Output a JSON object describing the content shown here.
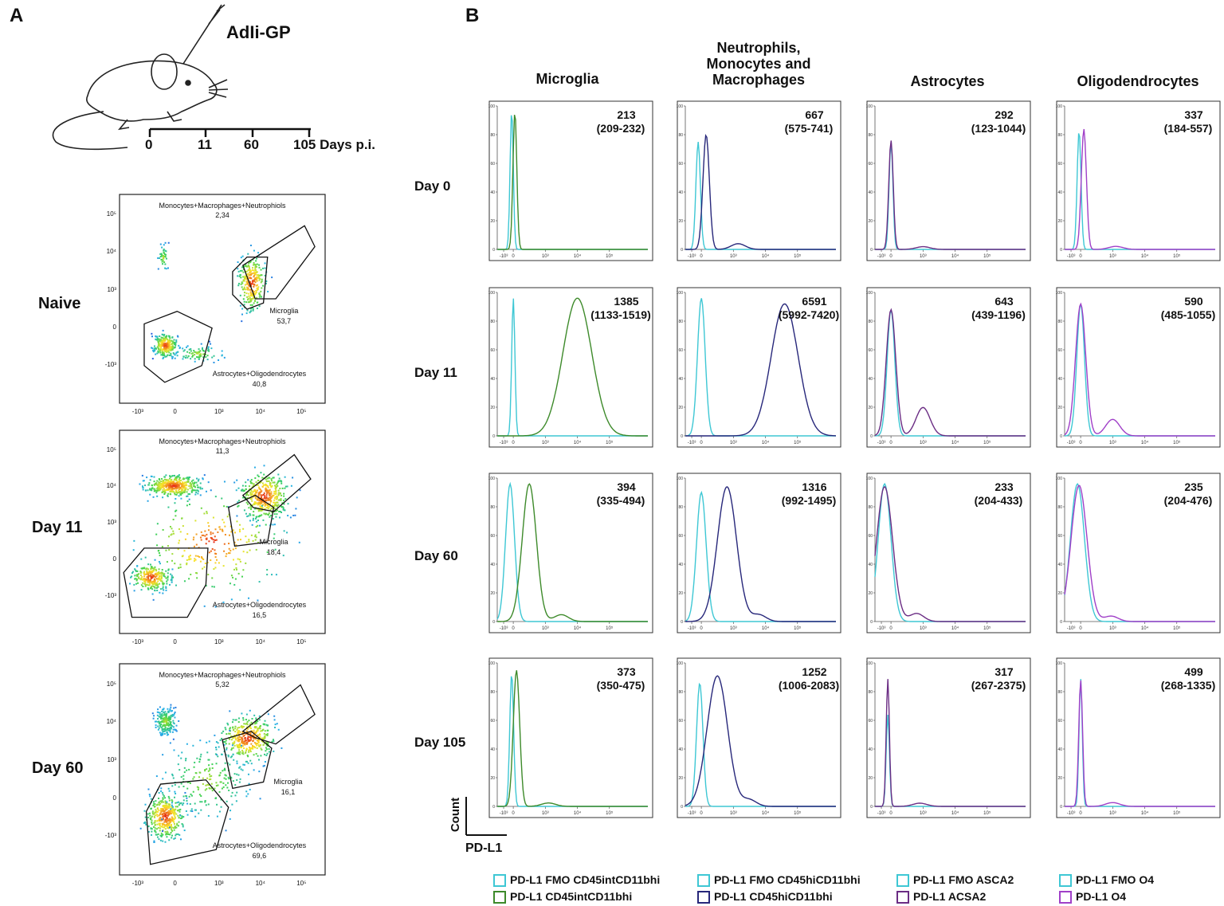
{
  "figure": {
    "panel_a_label": "A",
    "panel_b_label": "B",
    "injection_label": "AdIi-GP",
    "timeline": {
      "ticks": [
        "0",
        "11",
        "60",
        "105 Days p.i."
      ]
    }
  },
  "scatter_panels": [
    {
      "condition": "Naive",
      "gates": [
        {
          "name": "Monocytes+Macrophages+Neutrophiols",
          "value": "2,34"
        },
        {
          "name": "Microglia",
          "value": "53,7"
        },
        {
          "name": "Astrocytes+Oligodendrocytes",
          "value": "40,8"
        }
      ]
    },
    {
      "condition": "Day 11",
      "gates": [
        {
          "name": "Monocytes+Macrophages+Neutrophiols",
          "value": "11,3"
        },
        {
          "name": "Microglia",
          "value": "18,4"
        },
        {
          "name": "Astrocytes+Oligodendrocytes",
          "value": "16,5"
        }
      ]
    },
    {
      "condition": "Day 60",
      "gates": [
        {
          "name": "Monocytes+Macrophages+Neutrophiols",
          "value": "5,32"
        },
        {
          "name": "Microglia",
          "value": "16,1"
        },
        {
          "name": "Astrocytes+Oligodendrocytes",
          "value": "69,6"
        }
      ]
    }
  ],
  "scatter_axes": {
    "x_ticks": [
      "-10³",
      "0",
      "10³",
      "10⁴",
      "10⁵"
    ],
    "y_ticks": [
      "10⁵",
      "10⁴",
      "10³",
      "0",
      "-10³"
    ]
  },
  "histogram_grid": {
    "columns": [
      "Microglia",
      "Neutrophils, Monocytes and Macrophages",
      "Astrocytes",
      "Oligodendrocytes"
    ],
    "rows": [
      "Day 0",
      "Day 11",
      "Day 60",
      "Day 105"
    ],
    "y_ticks": [
      "100",
      "80",
      "60",
      "40",
      "20",
      "0"
    ],
    "x_ticks": [
      "-10³",
      "0",
      "10³",
      "10⁴",
      "10⁵"
    ],
    "axis_x_label": "PD-L1",
    "axis_y_label": "Count"
  },
  "chart_data": {
    "type": "histogram-grid",
    "title": "",
    "xlabel": "PD-L1",
    "ylabel": "Count",
    "ylim": [
      0,
      100
    ],
    "x_scale": "biexponential (-10^3 to 10^5)",
    "cells": [
      [
        {
          "mfi": "213",
          "range": "(209-232)",
          "fmo_peak": -0.05,
          "fmo_width": 0.05,
          "fmo_height": 97,
          "stain_peak": 0.05,
          "stain_width": 0.06,
          "stain_height": 96,
          "tail": 0
        },
        {
          "mfi": "667",
          "range": "(575-741)",
          "fmo_peak": -0.1,
          "fmo_width": 0.07,
          "fmo_height": 75,
          "stain_peak": 0.15,
          "stain_width": 0.1,
          "stain_height": 80,
          "tail": 0.1
        },
        {
          "mfi": "292",
          "range": "(123-1044)",
          "fmo_peak": 0.0,
          "fmo_width": 0.06,
          "fmo_height": 75,
          "stain_peak": 0.0,
          "stain_width": 0.07,
          "stain_height": 76,
          "tail": 0.05
        },
        {
          "mfi": "337",
          "range": "(184-557)",
          "fmo_peak": -0.05,
          "fmo_width": 0.06,
          "fmo_height": 83,
          "stain_peak": 0.1,
          "stain_width": 0.08,
          "stain_height": 84,
          "tail": 0.05
        }
      ],
      [
        {
          "mfi": "1385",
          "range": "(1133-1519)",
          "fmo_peak": 0.0,
          "fmo_width": 0.05,
          "fmo_height": 96,
          "stain_peak": 2.0,
          "stain_width": 0.45,
          "stain_height": 96,
          "tail": 0
        },
        {
          "mfi": "6591",
          "range": "(5992-7420)",
          "fmo_peak": 0.0,
          "fmo_width": 0.12,
          "fmo_height": 96,
          "stain_peak": 2.6,
          "stain_width": 0.42,
          "stain_height": 92,
          "tail": 0
        },
        {
          "mfi": "643",
          "range": "(439-1196)",
          "fmo_peak": 0.0,
          "fmo_width": 0.12,
          "fmo_height": 88,
          "stain_peak": 0.0,
          "stain_width": 0.15,
          "stain_height": 88,
          "tail": 0.45
        },
        {
          "mfi": "590",
          "range": "(485-1055)",
          "fmo_peak": 0.0,
          "fmo_width": 0.12,
          "fmo_height": 92,
          "stain_peak": 0.0,
          "stain_width": 0.16,
          "stain_height": 92,
          "tail": 0.25
        }
      ],
      [
        {
          "mfi": "394",
          "range": "(335-494)",
          "fmo_peak": -0.1,
          "fmo_width": 0.14,
          "fmo_height": 96,
          "stain_peak": 0.5,
          "stain_width": 0.22,
          "stain_height": 96,
          "tail": 0.1
        },
        {
          "mfi": "1316",
          "range": "(992-1495)",
          "fmo_peak": 0.0,
          "fmo_width": 0.15,
          "fmo_height": 90,
          "stain_peak": 0.8,
          "stain_width": 0.3,
          "stain_height": 94,
          "tail": 0.1
        },
        {
          "mfi": "233",
          "range": "(204-433)",
          "fmo_peak": -0.2,
          "fmo_width": 0.2,
          "fmo_height": 96,
          "stain_peak": -0.2,
          "stain_width": 0.25,
          "stain_height": 94,
          "tail": 0.12
        },
        {
          "mfi": "235",
          "range": "(204-476)",
          "fmo_peak": -0.1,
          "fmo_width": 0.22,
          "fmo_height": 96,
          "stain_peak": -0.05,
          "stain_width": 0.25,
          "stain_height": 95,
          "tail": 0.08
        }
      ],
      [
        {
          "mfi": "373",
          "range": "(350-475)",
          "fmo_peak": -0.05,
          "fmo_width": 0.06,
          "fmo_height": 93,
          "stain_peak": 0.1,
          "stain_width": 0.1,
          "stain_height": 95,
          "tail": 0.05
        },
        {
          "mfi": "1252",
          "range": "(1006-2083)",
          "fmo_peak": -0.05,
          "fmo_width": 0.1,
          "fmo_height": 86,
          "stain_peak": 0.5,
          "stain_width": 0.32,
          "stain_height": 91,
          "tail": 0.1
        },
        {
          "mfi": "317",
          "range": "(267-2375)",
          "fmo_peak": -0.1,
          "fmo_width": 0.05,
          "fmo_height": 64,
          "stain_peak": -0.1,
          "stain_width": 0.05,
          "stain_height": 89,
          "tail": 0.05
        },
        {
          "mfi": "499",
          "range": "(268-1335)",
          "fmo_peak": 0.0,
          "fmo_width": 0.05,
          "fmo_height": 89,
          "stain_peak": 0.0,
          "stain_width": 0.06,
          "stain_height": 88,
          "tail": 0.06
        }
      ]
    ]
  },
  "legend": [
    {
      "label": "PD-L1 FMO CD45intCD11bhi",
      "color": "#3ec7d4"
    },
    {
      "label": "PD-L1 CD45intCD11bhi",
      "color": "#3d8a2a"
    },
    {
      "label": "PD-L1 FMO CD45hiCD11bhi",
      "color": "#3ec7d4"
    },
    {
      "label": "PD-L1 CD45hiCD11bhi",
      "color": "#27277a"
    },
    {
      "label": "PD-L1 FMO ASCA2",
      "color": "#3ec7d4"
    },
    {
      "label": "PD-L1 ACSA2",
      "color": "#6b2d84"
    },
    {
      "label": "PD-L1 FMO O4",
      "color": "#3ec7d4"
    },
    {
      "label": "PD-L1 O4",
      "color": "#a040c8"
    }
  ],
  "colors": {
    "fmo": "#3ec7d4",
    "microglia": "#3d8a2a",
    "myeloid": "#27277a",
    "astrocytes": "#6b2d84",
    "oligodendrocytes": "#a040c8"
  }
}
